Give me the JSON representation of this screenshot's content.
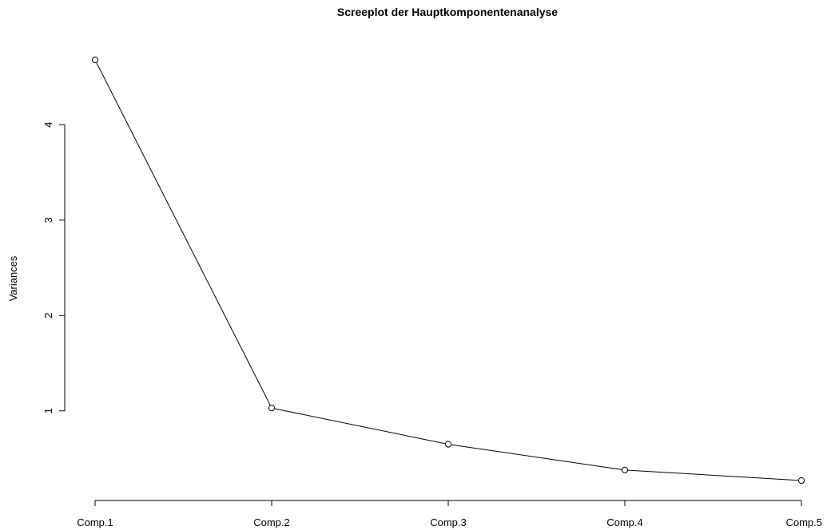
{
  "chart_data": {
    "type": "line",
    "title": "Screeplot der Hauptkomponentenanalyse",
    "xlabel": "",
    "ylabel": "Variances",
    "categories": [
      "Comp.1",
      "Comp.2",
      "Comp.3",
      "Comp.4",
      "Comp.5"
    ],
    "values": [
      4.68,
      1.03,
      0.65,
      0.38,
      0.27
    ],
    "yticks": [
      1,
      2,
      3,
      4
    ],
    "ylim": [
      0.27,
      4.68
    ],
    "grid": false,
    "legend": "none",
    "colors": {
      "line": "#000000",
      "marker_fill": "#ffffff",
      "marker_stroke": "#000000"
    }
  }
}
